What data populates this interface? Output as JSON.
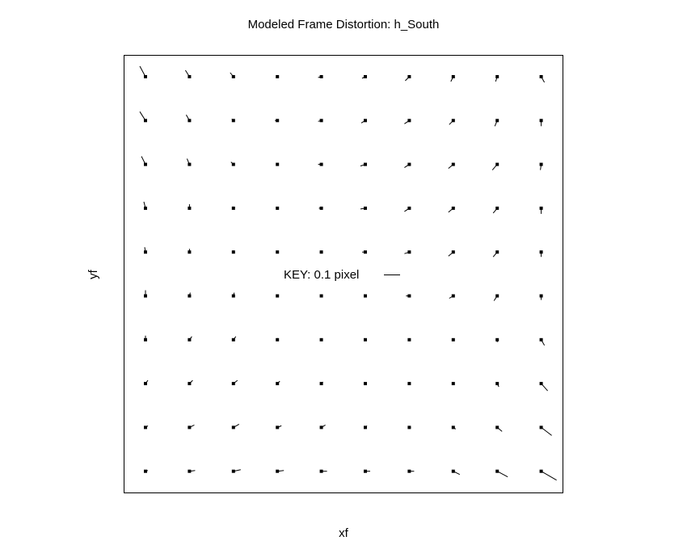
{
  "chart_data": {
    "type": "quiver",
    "title": "Modeled Frame Distortion: h_South",
    "xlabel": "xf",
    "ylabel": "yf",
    "key": {
      "label": "KEY: 0.1 pixel",
      "value": 0.1
    },
    "grid_size": [
      10,
      10
    ],
    "grid": false,
    "color": "#000000",
    "rows_order": "top-to-bottom",
    "u": [
      [
        -0.035,
        -0.025,
        -0.02,
        0.0,
        -0.02,
        -0.02,
        -0.025,
        -0.015,
        -0.01,
        0.02
      ],
      [
        -0.035,
        -0.02,
        -0.01,
        -0.015,
        -0.02,
        -0.025,
        -0.03,
        -0.025,
        -0.015,
        0.0
      ],
      [
        -0.025,
        -0.015,
        -0.015,
        0.0,
        -0.02,
        -0.03,
        -0.03,
        -0.03,
        -0.03,
        -0.005
      ],
      [
        -0.01,
        0.0,
        -0.005,
        0.0,
        -0.015,
        -0.03,
        -0.03,
        -0.03,
        -0.025,
        0.0
      ],
      [
        -0.005,
        0.0,
        0.0,
        0.0,
        -0.01,
        -0.02,
        -0.03,
        -0.03,
        -0.025,
        0.0
      ],
      [
        0.0,
        0.005,
        0.005,
        0.0,
        0.0,
        -0.01,
        -0.02,
        -0.025,
        -0.02,
        0.0
      ],
      [
        0.0,
        0.015,
        0.015,
        0.0,
        0.0,
        0.0,
        0.0,
        0.0,
        0.0,
        0.02
      ],
      [
        0.015,
        0.02,
        0.025,
        0.015,
        0.01,
        0.0,
        0.0,
        0.0,
        0.01,
        0.04
      ],
      [
        0.015,
        0.03,
        0.035,
        0.025,
        0.025,
        0.01,
        0.01,
        0.015,
        0.03,
        0.065
      ],
      [
        0.015,
        0.035,
        0.045,
        0.04,
        0.035,
        0.03,
        0.03,
        0.04,
        0.065,
        0.095
      ]
    ],
    "v": [
      [
        0.065,
        0.04,
        0.025,
        0.0,
        -0.005,
        -0.01,
        -0.025,
        -0.03,
        -0.03,
        -0.035
      ],
      [
        0.055,
        0.035,
        0.01,
        0.0,
        -0.005,
        -0.015,
        -0.02,
        -0.025,
        -0.035,
        -0.035
      ],
      [
        0.05,
        0.035,
        0.015,
        0.005,
        0.0,
        -0.01,
        -0.02,
        -0.025,
        -0.035,
        -0.035
      ],
      [
        0.04,
        0.025,
        0.01,
        0.0,
        0.0,
        -0.005,
        -0.02,
        -0.025,
        -0.03,
        -0.035
      ],
      [
        0.03,
        0.02,
        0.01,
        0.0,
        0.0,
        0.0,
        -0.01,
        -0.025,
        -0.03,
        -0.03
      ],
      [
        0.035,
        0.02,
        0.02,
        0.005,
        0.0,
        0.0,
        0.0,
        -0.015,
        -0.03,
        -0.025
      ],
      [
        0.025,
        0.02,
        0.02,
        0.01,
        0.0,
        0.0,
        0.0,
        0.0,
        -0.015,
        -0.035
      ],
      [
        0.02,
        0.02,
        0.02,
        0.015,
        0.01,
        0.0,
        0.0,
        0.0,
        -0.02,
        -0.045
      ],
      [
        0.01,
        0.015,
        0.02,
        0.01,
        0.015,
        0.01,
        0.0,
        -0.01,
        -0.025,
        -0.05
      ],
      [
        0.005,
        0.005,
        0.01,
        0.005,
        0.0,
        0.0,
        0.0,
        -0.02,
        -0.035,
        -0.055
      ]
    ]
  }
}
